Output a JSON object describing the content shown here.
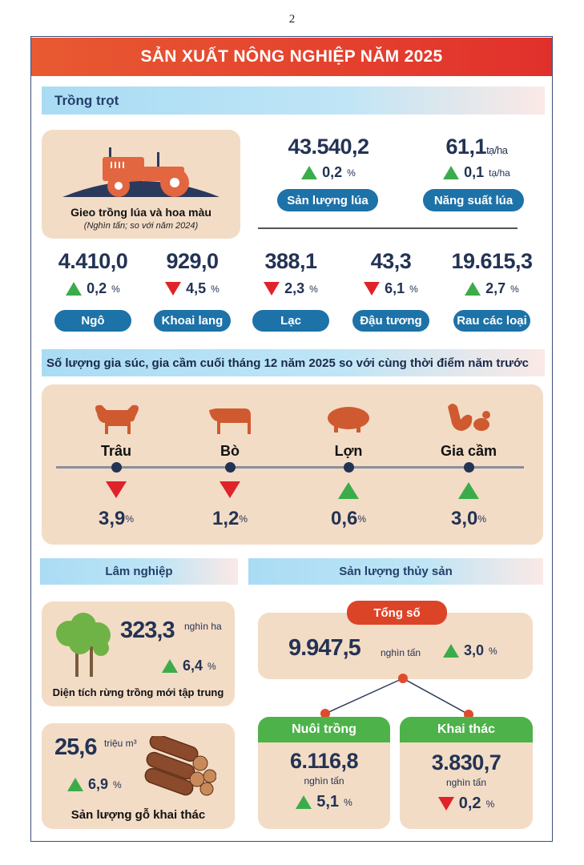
{
  "page_number": "2",
  "title": "SẢN XUẤT NÔNG NGHIỆP NĂM 2025",
  "trong_trot": {
    "header": "Trồng trọt",
    "card_title": "Gieo trồng lúa và hoa màu",
    "card_subtitle": "(Nghìn tấn; so với năm 2024)",
    "rice_output": {
      "value": "43.540,2",
      "change": "0,2",
      "pct": "%",
      "label": "Sản lượng lúa",
      "direction": "up"
    },
    "rice_yield": {
      "value": "61,1",
      "unit": "tạ/ha",
      "change": "0,1",
      "change_unit": "tạ/ha",
      "label": "Năng suất lúa",
      "direction": "up"
    },
    "crops": [
      {
        "value": "4.410,0",
        "change": "0,2",
        "pct": "%",
        "label": "Ngô",
        "direction": "up"
      },
      {
        "value": "929,0",
        "change": "4,5",
        "pct": "%",
        "label": "Khoai lang",
        "direction": "down"
      },
      {
        "value": "388,1",
        "change": "2,3",
        "pct": "%",
        "label": "Lạc",
        "direction": "down"
      },
      {
        "value": "43,3",
        "change": "6,1",
        "pct": "%",
        "label": "Đậu tương",
        "direction": "down"
      },
      {
        "value": "19.615,3",
        "change": "2,7",
        "pct": "%",
        "label": "Rau các loại",
        "direction": "up"
      }
    ]
  },
  "livestock": {
    "header": "Số lượng gia súc, gia cầm cuối tháng 12 năm 2025 so với cùng thời điểm năm trước",
    "items": [
      {
        "label": "Trâu",
        "change": "3,9",
        "pct": "%",
        "direction": "down",
        "icon": "buffalo-icon"
      },
      {
        "label": "Bò",
        "change": "1,2",
        "pct": "%",
        "direction": "down",
        "icon": "cow-icon"
      },
      {
        "label": "Lợn",
        "change": "0,6",
        "pct": "%",
        "direction": "up",
        "icon": "pig-icon"
      },
      {
        "label": "Gia cầm",
        "change": "3,0",
        "pct": "%",
        "direction": "up",
        "icon": "poultry-icon"
      }
    ]
  },
  "forestry": {
    "header": "Lâm nghiệp",
    "new_forest": {
      "value": "323,3",
      "unit": "nghìn ha",
      "change": "6,4",
      "pct": "%",
      "label": "Diện tích rừng trồng mới tập trung",
      "direction": "up"
    },
    "timber": {
      "value": "25,6",
      "unit": "triệu m³",
      "change": "6,9",
      "pct": "%",
      "label": "Sản lượng gỗ khai thác",
      "direction": "up"
    }
  },
  "fishery": {
    "header": "Sản lượng thủy sản",
    "total": {
      "label": "Tổng số",
      "value": "9.947,5",
      "unit": "nghìn tấn",
      "change": "3,0",
      "pct": "%",
      "direction": "up"
    },
    "aquaculture": {
      "label": "Nuôi trồng",
      "value": "6.116,8",
      "unit": "nghìn tấn",
      "change": "5,1",
      "pct": "%",
      "direction": "up"
    },
    "capture": {
      "label": "Khai thác",
      "value": "3.830,7",
      "unit": "nghìn tấn",
      "change": "0,2",
      "pct": "%",
      "direction": "down"
    }
  },
  "colors": {
    "banner": "#e1302c",
    "pill": "#1d72a8",
    "card": "#f3dcc6",
    "up": "#3cac4a",
    "down": "#e0222a",
    "green_header": "#4db249"
  }
}
